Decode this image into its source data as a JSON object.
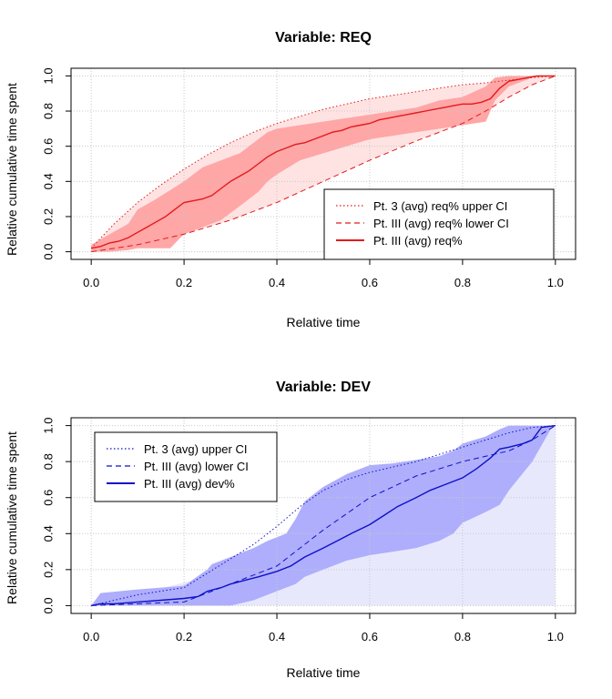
{
  "chart_data": [
    {
      "type": "line",
      "title": "Variable: REQ",
      "xlabel": "Relative time",
      "ylabel": "Relative cumulative time spent",
      "xlim": [
        0,
        1
      ],
      "ylim": [
        0,
        1
      ],
      "xticks": [
        "0.0",
        "0.2",
        "0.4",
        "0.6",
        "0.8",
        "1.0"
      ],
      "yticks": [
        "0.0",
        "0.2",
        "0.4",
        "0.6",
        "0.8",
        "1.0"
      ],
      "grid": true,
      "legend_position": "bottom-right",
      "colors": {
        "line": "#e31a1c",
        "band_inner": "#ffa6a6",
        "band_outer": "#ffe3e3"
      },
      "series": [
        {
          "name": "Pt. 3 (avg) req% upper CI",
          "style": "dotted",
          "x": [
            0,
            0.05,
            0.1,
            0.15,
            0.2,
            0.25,
            0.3,
            0.35,
            0.4,
            0.45,
            0.5,
            0.55,
            0.6,
            0.65,
            0.7,
            0.75,
            0.8,
            0.85,
            0.88,
            0.95,
            1.0
          ],
          "y": [
            0.02,
            0.16,
            0.28,
            0.38,
            0.47,
            0.55,
            0.62,
            0.68,
            0.73,
            0.77,
            0.81,
            0.84,
            0.87,
            0.89,
            0.91,
            0.93,
            0.95,
            0.96,
            0.97,
            0.99,
            1.0
          ]
        },
        {
          "name": "Pt. III (avg) req% lower CI",
          "style": "dashed",
          "x": [
            0,
            0.1,
            0.2,
            0.3,
            0.4,
            0.5,
            0.6,
            0.7,
            0.8,
            0.85,
            0.9,
            0.95,
            1.0
          ],
          "y": [
            0.0,
            0.04,
            0.1,
            0.18,
            0.28,
            0.4,
            0.52,
            0.63,
            0.73,
            0.8,
            0.88,
            0.95,
            1.0
          ]
        },
        {
          "name": "Pt. III (avg) req%",
          "style": "solid",
          "x": [
            0,
            0.02,
            0.04,
            0.06,
            0.08,
            0.1,
            0.12,
            0.14,
            0.16,
            0.18,
            0.2,
            0.22,
            0.24,
            0.26,
            0.28,
            0.3,
            0.32,
            0.34,
            0.36,
            0.38,
            0.4,
            0.42,
            0.44,
            0.46,
            0.48,
            0.5,
            0.52,
            0.54,
            0.56,
            0.58,
            0.6,
            0.62,
            0.64,
            0.66,
            0.68,
            0.7,
            0.72,
            0.74,
            0.76,
            0.78,
            0.8,
            0.82,
            0.84,
            0.86,
            0.88,
            0.9,
            0.92,
            0.94,
            0.96,
            1.0
          ],
          "y": [
            0.02,
            0.03,
            0.05,
            0.06,
            0.08,
            0.11,
            0.14,
            0.17,
            0.2,
            0.24,
            0.28,
            0.29,
            0.3,
            0.32,
            0.36,
            0.4,
            0.43,
            0.46,
            0.5,
            0.54,
            0.57,
            0.59,
            0.61,
            0.62,
            0.64,
            0.66,
            0.68,
            0.69,
            0.71,
            0.72,
            0.73,
            0.75,
            0.76,
            0.77,
            0.78,
            0.79,
            0.8,
            0.81,
            0.82,
            0.83,
            0.84,
            0.84,
            0.85,
            0.87,
            0.93,
            0.97,
            0.98,
            0.99,
            1.0,
            1.0
          ]
        }
      ],
      "band_outer": {
        "x": [
          0,
          0.05,
          0.1,
          0.15,
          0.2,
          0.25,
          0.3,
          0.35,
          0.4,
          0.45,
          0.5,
          0.55,
          0.6,
          0.65,
          0.7,
          0.75,
          0.8,
          0.85,
          0.9,
          0.95,
          1.0
        ],
        "upper": [
          0.02,
          0.16,
          0.28,
          0.38,
          0.47,
          0.55,
          0.62,
          0.68,
          0.73,
          0.77,
          0.81,
          0.84,
          0.87,
          0.89,
          0.91,
          0.93,
          0.95,
          0.96,
          0.98,
          0.99,
          1.0
        ],
        "lower": [
          0.0,
          0.02,
          0.04,
          0.07,
          0.1,
          0.14,
          0.18,
          0.23,
          0.28,
          0.34,
          0.4,
          0.46,
          0.52,
          0.58,
          0.63,
          0.68,
          0.73,
          0.8,
          0.88,
          0.95,
          1.0
        ]
      },
      "band_inner": {
        "x": [
          0,
          0.04,
          0.08,
          0.1,
          0.14,
          0.17,
          0.2,
          0.24,
          0.28,
          0.32,
          0.36,
          0.38,
          0.4,
          0.45,
          0.5,
          0.55,
          0.6,
          0.65,
          0.7,
          0.75,
          0.8,
          0.85,
          0.87,
          0.9,
          0.95,
          1.0
        ],
        "upper": [
          0.04,
          0.1,
          0.16,
          0.24,
          0.3,
          0.35,
          0.4,
          0.48,
          0.52,
          0.56,
          0.64,
          0.68,
          0.7,
          0.72,
          0.74,
          0.76,
          0.78,
          0.8,
          0.82,
          0.86,
          0.88,
          0.94,
          0.99,
          1.0,
          1.0,
          1.0
        ],
        "lower": [
          0.0,
          0.0,
          0.01,
          0.02,
          0.02,
          0.02,
          0.1,
          0.14,
          0.18,
          0.26,
          0.34,
          0.4,
          0.44,
          0.52,
          0.56,
          0.6,
          0.64,
          0.66,
          0.68,
          0.7,
          0.72,
          0.74,
          0.86,
          0.94,
          0.99,
          1.0
        ]
      }
    },
    {
      "type": "line",
      "title": "Variable: DEV",
      "xlabel": "Relative time",
      "ylabel": "Relative cumulative time spent",
      "xlim": [
        0,
        1
      ],
      "ylim": [
        0,
        1
      ],
      "xticks": [
        "0.0",
        "0.2",
        "0.4",
        "0.6",
        "0.8",
        "1.0"
      ],
      "yticks": [
        "0.0",
        "0.2",
        "0.4",
        "0.6",
        "0.8",
        "1.0"
      ],
      "grid": true,
      "legend_position": "top-left",
      "colors": {
        "line": "#1010c8",
        "band_inner": "#aeaefc",
        "band_outer": "#e8e8fd"
      },
      "series": [
        {
          "name": "Pt. 3 (avg) upper CI",
          "style": "dotted",
          "x": [
            0,
            0.1,
            0.2,
            0.25,
            0.3,
            0.35,
            0.4,
            0.45,
            0.5,
            0.55,
            0.6,
            0.65,
            0.7,
            0.75,
            0.8,
            0.85,
            0.9,
            0.95,
            1.0
          ],
          "y": [
            0.0,
            0.06,
            0.1,
            0.18,
            0.26,
            0.34,
            0.44,
            0.55,
            0.64,
            0.7,
            0.74,
            0.77,
            0.8,
            0.84,
            0.88,
            0.92,
            0.96,
            0.99,
            1.0
          ]
        },
        {
          "name": "Pt. III (avg) lower CI",
          "style": "dashed",
          "x": [
            0,
            0.2,
            0.4,
            0.5,
            0.6,
            0.7,
            0.8,
            0.9,
            0.95,
            1.0
          ],
          "y": [
            0.0,
            0.02,
            0.22,
            0.42,
            0.6,
            0.72,
            0.8,
            0.86,
            0.92,
            1.0
          ]
        },
        {
          "name": "Pt. III (avg) dev%",
          "style": "solid",
          "x": [
            0,
            0.02,
            0.05,
            0.1,
            0.15,
            0.2,
            0.23,
            0.25,
            0.28,
            0.3,
            0.33,
            0.36,
            0.4,
            0.43,
            0.46,
            0.5,
            0.53,
            0.56,
            0.6,
            0.63,
            0.66,
            0.7,
            0.73,
            0.76,
            0.8,
            0.83,
            0.86,
            0.88,
            0.9,
            0.93,
            0.95,
            0.97,
            1.0
          ],
          "y": [
            0.0,
            0.01,
            0.01,
            0.02,
            0.03,
            0.04,
            0.05,
            0.08,
            0.1,
            0.12,
            0.14,
            0.16,
            0.19,
            0.22,
            0.27,
            0.32,
            0.36,
            0.4,
            0.45,
            0.5,
            0.55,
            0.6,
            0.64,
            0.67,
            0.71,
            0.76,
            0.82,
            0.87,
            0.88,
            0.9,
            0.92,
            0.99,
            1.0
          ]
        }
      ],
      "band_outer": {
        "x": [
          0,
          0.5,
          0.6,
          0.7,
          0.8,
          0.9,
          0.95,
          1.0
        ],
        "upper": [
          0.0,
          0.32,
          0.47,
          0.62,
          0.77,
          0.9,
          0.99,
          1.0
        ],
        "lower": [
          0.0,
          0.0,
          0.0,
          0.0,
          0.0,
          0.0,
          0.0,
          0.0
        ]
      },
      "band_inner": {
        "x": [
          0,
          0.02,
          0.1,
          0.2,
          0.25,
          0.26,
          0.3,
          0.35,
          0.38,
          0.42,
          0.44,
          0.46,
          0.5,
          0.55,
          0.6,
          0.65,
          0.7,
          0.75,
          0.78,
          0.8,
          0.85,
          0.88,
          0.9,
          0.95,
          0.99,
          1.0
        ],
        "upper": [
          0.0,
          0.07,
          0.09,
          0.11,
          0.2,
          0.23,
          0.27,
          0.32,
          0.36,
          0.4,
          0.48,
          0.58,
          0.66,
          0.73,
          0.78,
          0.79,
          0.81,
          0.83,
          0.86,
          0.9,
          0.94,
          0.98,
          1.0,
          1.0,
          1.0,
          1.0
        ],
        "lower": [
          0.0,
          0.0,
          0.0,
          0.0,
          0.0,
          0.0,
          0.0,
          0.03,
          0.06,
          0.1,
          0.12,
          0.16,
          0.2,
          0.25,
          0.28,
          0.3,
          0.32,
          0.36,
          0.4,
          0.46,
          0.52,
          0.56,
          0.64,
          0.8,
          0.98,
          1.0
        ]
      }
    }
  ]
}
